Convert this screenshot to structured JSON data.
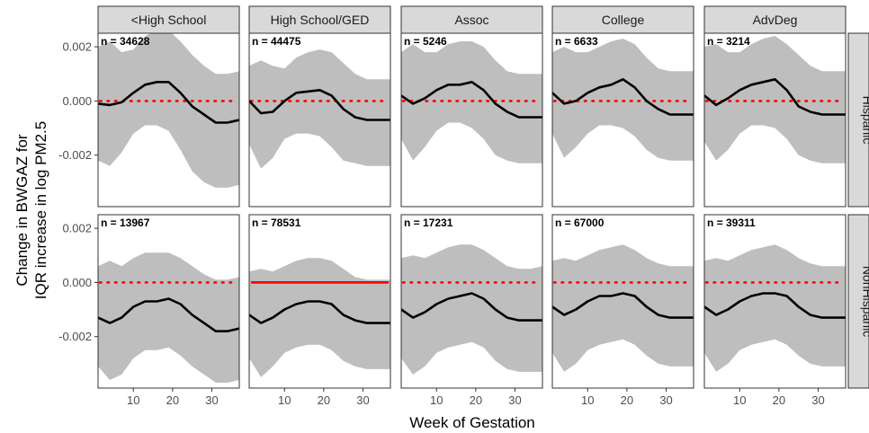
{
  "chart_data": {
    "type": "line",
    "xlabel": "Week of Gestation",
    "ylabel": [
      "Change in BWGAZ for",
      "IQR increase in log PM2.5"
    ],
    "columns": [
      "<High School",
      "High School/GED",
      "Assoc",
      "College",
      "AdvDeg"
    ],
    "rows": [
      "Hispanic",
      "NonHispanic"
    ],
    "xlim": [
      1,
      37
    ],
    "ylim": [
      -0.0039,
      0.0025
    ],
    "xticks": [
      10,
      20,
      30
    ],
    "yticks": [
      0.002,
      0.0,
      -0.002
    ],
    "ytick_labels": [
      "0.002",
      "0.000",
      "-0.002"
    ],
    "x": [
      1,
      4,
      7,
      10,
      13,
      16,
      19,
      22,
      25,
      28,
      31,
      34,
      37
    ],
    "reference_line": 0,
    "panels": [
      {
        "row": "Hispanic",
        "col": "<High School",
        "n_label": "n = 34628",
        "est": [
          -0.0001,
          -0.00015,
          -5e-05,
          0.0003,
          0.0006,
          0.0007,
          0.0007,
          0.0003,
          -0.0002,
          -0.0005,
          -0.0008,
          -0.0008,
          -0.0007
        ],
        "upper": [
          0.002,
          0.0022,
          0.0018,
          0.0019,
          0.0024,
          0.0026,
          0.0026,
          0.0022,
          0.0017,
          0.0013,
          0.001,
          0.001,
          0.0011
        ],
        "lower": [
          -0.0022,
          -0.0024,
          -0.0019,
          -0.0012,
          -0.0009,
          -0.0009,
          -0.0011,
          -0.0018,
          -0.0026,
          -0.003,
          -0.0032,
          -0.0032,
          -0.0031
        ],
        "zero_line": "dotted"
      },
      {
        "row": "Hispanic",
        "col": "High School/GED",
        "n_label": "n = 44475",
        "est": [
          0.0,
          -0.00045,
          -0.0004,
          0.0,
          0.0003,
          0.00035,
          0.0004,
          0.0002,
          -0.0003,
          -0.0006,
          -0.0007,
          -0.0007,
          -0.0007
        ],
        "upper": [
          0.0013,
          0.0015,
          0.0013,
          0.0012,
          0.0016,
          0.0018,
          0.0019,
          0.0018,
          0.0014,
          0.001,
          0.0008,
          0.0008,
          0.0008
        ],
        "lower": [
          -0.0016,
          -0.0025,
          -0.0021,
          -0.0014,
          -0.0012,
          -0.0012,
          -0.0013,
          -0.0017,
          -0.0022,
          -0.0023,
          -0.0024,
          -0.0024,
          -0.0024
        ],
        "zero_line": "dotted"
      },
      {
        "row": "Hispanic",
        "col": "Assoc",
        "n_label": "n = 5246",
        "est": [
          0.0002,
          -0.0001,
          0.0001,
          0.0004,
          0.0006,
          0.0006,
          0.0007,
          0.0004,
          -0.0001,
          -0.0004,
          -0.0006,
          -0.0006,
          -0.0006
        ],
        "upper": [
          0.0018,
          0.0021,
          0.0018,
          0.0018,
          0.0021,
          0.0022,
          0.0022,
          0.002,
          0.0015,
          0.0011,
          0.001,
          0.001,
          0.001
        ],
        "lower": [
          -0.0014,
          -0.0022,
          -0.0017,
          -0.0011,
          -0.0008,
          -0.0008,
          -0.001,
          -0.0014,
          -0.002,
          -0.0022,
          -0.0023,
          -0.0023,
          -0.0023
        ],
        "zero_line": "dotted"
      },
      {
        "row": "Hispanic",
        "col": "College",
        "n_label": "n = 6633",
        "est": [
          0.0003,
          -0.0001,
          0.0,
          0.0003,
          0.0005,
          0.0006,
          0.0008,
          0.0005,
          0.0,
          -0.0003,
          -0.0005,
          -0.0005,
          -0.0005
        ],
        "upper": [
          0.0018,
          0.002,
          0.0018,
          0.0018,
          0.002,
          0.0022,
          0.0023,
          0.0021,
          0.0016,
          0.0012,
          0.0011,
          0.0011,
          0.0011
        ],
        "lower": [
          -0.0012,
          -0.0021,
          -0.0017,
          -0.0012,
          -0.0009,
          -0.0009,
          -0.001,
          -0.0013,
          -0.0018,
          -0.0021,
          -0.0022,
          -0.0022,
          -0.0022
        ],
        "zero_line": "dotted"
      },
      {
        "row": "Hispanic",
        "col": "AdvDeg",
        "n_label": "n = 3214",
        "est": [
          0.0002,
          -0.00015,
          0.0001,
          0.0004,
          0.0006,
          0.0007,
          0.0008,
          0.0004,
          -0.0002,
          -0.0004,
          -0.0005,
          -0.0005,
          -0.0005
        ],
        "upper": [
          0.002,
          0.0021,
          0.0018,
          0.0018,
          0.0021,
          0.0023,
          0.0024,
          0.0021,
          0.0017,
          0.0013,
          0.0011,
          0.0011,
          0.0011
        ],
        "lower": [
          -0.0015,
          -0.0022,
          -0.0018,
          -0.0012,
          -0.0009,
          -0.0009,
          -0.001,
          -0.0014,
          -0.002,
          -0.0022,
          -0.0023,
          -0.0023,
          -0.0023
        ],
        "zero_line": "dotted"
      },
      {
        "row": "NonHispanic",
        "col": "<High School",
        "n_label": "n = 13967",
        "est": [
          -0.0013,
          -0.0015,
          -0.0013,
          -0.0009,
          -0.0007,
          -0.0007,
          -0.0006,
          -0.0008,
          -0.0012,
          -0.0015,
          -0.0018,
          -0.0018,
          -0.0017
        ],
        "upper": [
          0.0006,
          0.0008,
          0.0006,
          0.0009,
          0.0011,
          0.0011,
          0.0011,
          0.0009,
          0.0006,
          0.0003,
          0.0001,
          0.0001,
          0.0002
        ],
        "lower": [
          -0.0031,
          -0.0036,
          -0.0034,
          -0.0028,
          -0.0025,
          -0.0025,
          -0.0024,
          -0.0027,
          -0.0031,
          -0.0034,
          -0.0037,
          -0.0037,
          -0.0036
        ],
        "zero_line": "dotted"
      },
      {
        "row": "NonHispanic",
        "col": "High School/GED",
        "n_label": "n = 78531",
        "est": [
          -0.0012,
          -0.0015,
          -0.0013,
          -0.001,
          -0.0008,
          -0.0007,
          -0.0007,
          -0.0008,
          -0.0012,
          -0.0014,
          -0.0015,
          -0.0015,
          -0.0015
        ],
        "upper": [
          0.0004,
          0.0005,
          0.0004,
          0.0006,
          0.0008,
          0.0009,
          0.0009,
          0.0008,
          0.0005,
          0.0002,
          0.0001,
          0.0001,
          0.0001
        ],
        "lower": [
          -0.0028,
          -0.0035,
          -0.0031,
          -0.0026,
          -0.0024,
          -0.0023,
          -0.0023,
          -0.0025,
          -0.0029,
          -0.0031,
          -0.0032,
          -0.0032,
          -0.0032
        ],
        "zero_line": "solid"
      },
      {
        "row": "NonHispanic",
        "col": "Assoc",
        "n_label": "n = 17231",
        "est": [
          -0.001,
          -0.0013,
          -0.0011,
          -0.0008,
          -0.0006,
          -0.0005,
          -0.0004,
          -0.0006,
          -0.001,
          -0.0013,
          -0.0014,
          -0.0014,
          -0.0014
        ],
        "upper": [
          0.0009,
          0.001,
          0.0009,
          0.0011,
          0.0013,
          0.0014,
          0.0014,
          0.0012,
          0.0009,
          0.0006,
          0.0005,
          0.0005,
          0.0006
        ],
        "lower": [
          -0.0028,
          -0.0034,
          -0.0031,
          -0.0026,
          -0.0024,
          -0.0023,
          -0.0022,
          -0.0024,
          -0.0029,
          -0.0032,
          -0.0033,
          -0.0033,
          -0.0033
        ],
        "zero_line": "dotted"
      },
      {
        "row": "NonHispanic",
        "col": "College",
        "n_label": "n = 67000",
        "est": [
          -0.0009,
          -0.0012,
          -0.001,
          -0.0007,
          -0.0005,
          -0.0005,
          -0.0004,
          -0.0005,
          -0.0009,
          -0.0012,
          -0.0013,
          -0.0013,
          -0.0013
        ],
        "upper": [
          0.0008,
          0.0009,
          0.0008,
          0.001,
          0.0012,
          0.0013,
          0.0014,
          0.0012,
          0.0009,
          0.0007,
          0.0006,
          0.0006,
          0.0006
        ],
        "lower": [
          -0.0026,
          -0.0033,
          -0.003,
          -0.0025,
          -0.0023,
          -0.0022,
          -0.0021,
          -0.0023,
          -0.0027,
          -0.003,
          -0.0031,
          -0.0031,
          -0.0031
        ],
        "zero_line": "dotted"
      },
      {
        "row": "NonHispanic",
        "col": "AdvDeg",
        "n_label": "n = 39311",
        "est": [
          -0.0009,
          -0.0012,
          -0.001,
          -0.0007,
          -0.0005,
          -0.0004,
          -0.0004,
          -0.0005,
          -0.0009,
          -0.0012,
          -0.0013,
          -0.0013,
          -0.0013
        ],
        "upper": [
          0.0008,
          0.0009,
          0.0008,
          0.001,
          0.0012,
          0.0013,
          0.0014,
          0.0012,
          0.0009,
          0.0007,
          0.0006,
          0.0006,
          0.0006
        ],
        "lower": [
          -0.0026,
          -0.0033,
          -0.003,
          -0.0025,
          -0.0023,
          -0.0022,
          -0.0021,
          -0.0023,
          -0.0027,
          -0.003,
          -0.0031,
          -0.0031,
          -0.0031
        ],
        "zero_line": "dotted"
      }
    ]
  }
}
